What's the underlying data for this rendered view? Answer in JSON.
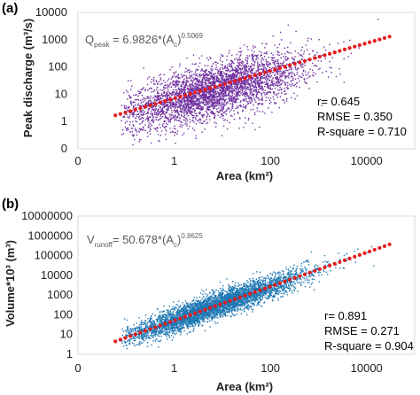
{
  "chart_data": [
    {
      "type": "scatter",
      "panel_label": "(a)",
      "xlabel": "Area (km²)",
      "ylabel": "Peak discharge (m³/s)",
      "x_scale": "log",
      "y_scale": "log",
      "xlim": [
        0.01,
        100000
      ],
      "ylim": [
        0.1,
        10000
      ],
      "x_ticks": [
        0.01,
        1,
        100,
        10000
      ],
      "x_tick_labels": [
        "0",
        "1",
        "100",
        "10000"
      ],
      "y_ticks": [
        0.1,
        1,
        10,
        100,
        1000,
        10000
      ],
      "y_tick_labels": [
        "0",
        "1",
        "10",
        "100",
        "1000",
        "10000"
      ],
      "grid": false,
      "equation": {
        "lhs": "Q",
        "lhs_sub": "peak",
        "rhs": " = 6.9826*(A",
        "rhs_sub": "c",
        "close": ")",
        "exp": "0.5069"
      },
      "stats": [
        "r= 0.645",
        "RMSE = 0.350",
        "R-square = 0.710"
      ],
      "series": [
        {
          "kind": "points",
          "color": "#7030a0",
          "count": 3800,
          "x_range": [
            0.08,
            20000
          ],
          "log_y_center_at_log_x0": 0.75,
          "slope_log": 0.45,
          "log_y_spread_sd": 0.5
        },
        {
          "kind": "fit",
          "color": "#e31a1c",
          "coef": 6.9826,
          "exponent": 0.5069,
          "x_range": [
            0.06,
            30000
          ]
        }
      ]
    },
    {
      "type": "scatter",
      "panel_label": "(b)",
      "xlabel": "Area (km²)",
      "ylabel": "Volume*10³ (m³)",
      "x_scale": "log",
      "y_scale": "log",
      "xlim": [
        0.01,
        100000
      ],
      "ylim": [
        1,
        10000000
      ],
      "x_ticks": [
        0.01,
        1,
        100,
        10000
      ],
      "x_tick_labels": [
        "0",
        "1",
        "100",
        "10000"
      ],
      "y_ticks": [
        1,
        10,
        100,
        1000,
        10000,
        100000,
        1000000,
        10000000
      ],
      "y_tick_labels": [
        "1",
        "10",
        "100",
        "1000",
        "10000",
        "100000",
        "1000000",
        "10000000"
      ],
      "grid": false,
      "equation": {
        "lhs": "V",
        "lhs_sub": "runoff",
        "rhs": "= 50.678*(A",
        "rhs_sub": "c",
        "close": ")",
        "exp": "0.8625"
      },
      "stats": [
        "r= 0.891",
        "RMSE = 0.271",
        "R-square = 0.904"
      ],
      "series": [
        {
          "kind": "points",
          "color": "#1f78b4",
          "count": 4500,
          "x_range": [
            0.08,
            40000
          ],
          "log_y_center_at_log_x0": 1.7,
          "slope_log": 0.86,
          "log_y_spread_sd": 0.32
        },
        {
          "kind": "fit",
          "color": "#e31a1c",
          "coef": 50.678,
          "exponent": 0.8625,
          "x_range": [
            0.06,
            30000
          ]
        }
      ]
    }
  ]
}
